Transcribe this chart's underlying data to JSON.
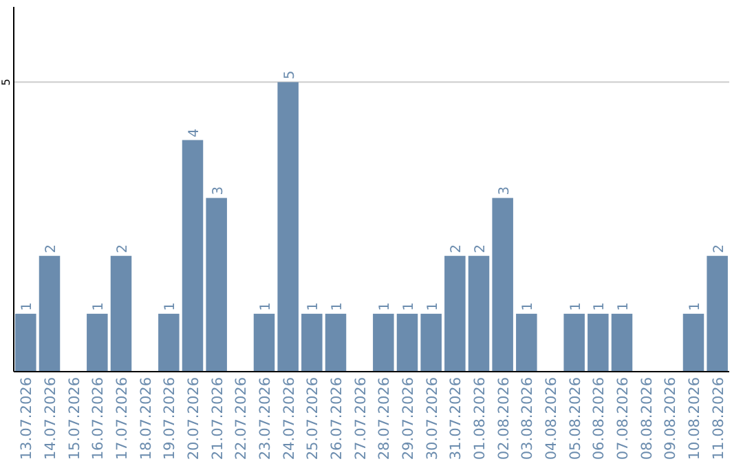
{
  "chart_data": {
    "type": "bar",
    "categories": [
      "13.07.2026",
      "14.07.2026",
      "15.07.2026",
      "16.07.2026",
      "17.07.2026",
      "18.07.2026",
      "19.07.2026",
      "20.07.2026",
      "21.07.2026",
      "22.07.2026",
      "23.07.2026",
      "24.07.2026",
      "25.07.2026",
      "26.07.2026",
      "27.07.2026",
      "28.07.2026",
      "29.07.2026",
      "30.07.2026",
      "31.07.2026",
      "01.08.2026",
      "02.08.2026",
      "03.08.2026",
      "04.08.2026",
      "05.08.2026",
      "06.08.2026",
      "07.08.2026",
      "08.08.2026",
      "09.08.2026",
      "10.08.2026",
      "11.08.2026"
    ],
    "values": [
      1,
      2,
      0,
      1,
      2,
      0,
      1,
      4,
      3,
      0,
      1,
      5,
      1,
      1,
      0,
      1,
      1,
      1,
      2,
      2,
      3,
      1,
      0,
      1,
      1,
      1,
      0,
      0,
      1,
      2
    ],
    "value_labels": [
      "1",
      "2",
      null,
      "1",
      "2",
      null,
      "1",
      "4",
      "3",
      null,
      "1",
      "5",
      "1",
      "1",
      null,
      "1",
      "1",
      "1",
      "2",
      "2",
      "3",
      "1",
      null,
      "1",
      "1",
      "1",
      null,
      null,
      "1",
      "2"
    ],
    "color": "#6b8cae",
    "ylim": [
      0,
      6.3
    ],
    "yticks": [
      5
    ],
    "grid": "y"
  }
}
